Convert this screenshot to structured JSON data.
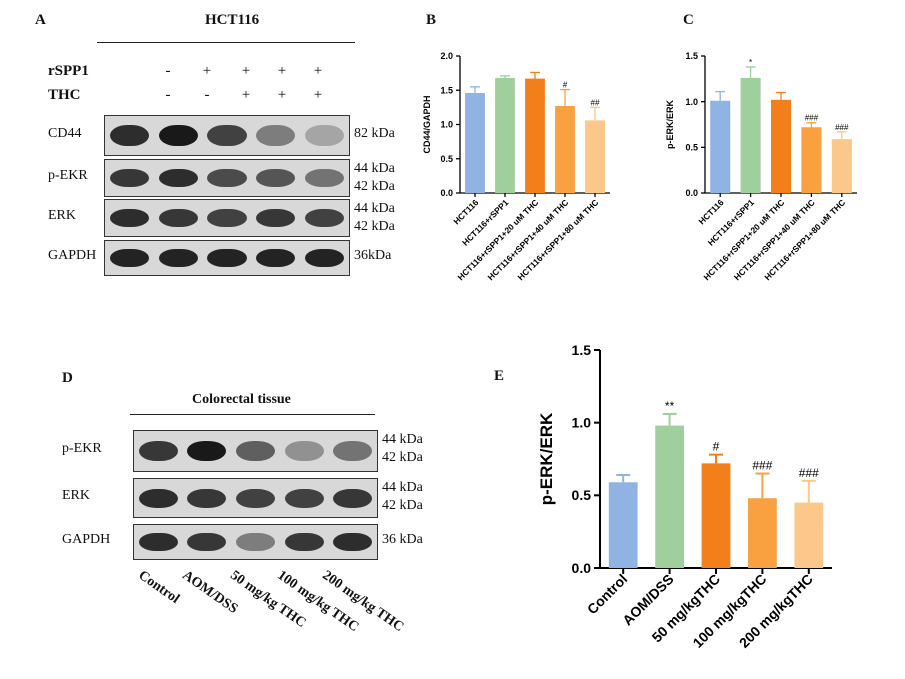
{
  "panels": {
    "A": {
      "letter": "A",
      "cell_line": "HCT116",
      "rows": [
        {
          "label": "rSPP1",
          "signs": [
            "-",
            "+",
            "+",
            "+",
            "+"
          ]
        },
        {
          "label": "THC",
          "signs": [
            "-",
            "-",
            "+",
            "+",
            "+"
          ]
        }
      ],
      "blots": [
        {
          "label": "CD44",
          "kda": [
            "82 kDa"
          ],
          "intensity": [
            0.85,
            0.95,
            0.75,
            0.45,
            0.25
          ]
        },
        {
          "label": "p-EKR",
          "kda": [
            "44 kDa",
            "42 kDa"
          ],
          "intensity": [
            0.8,
            0.85,
            0.7,
            0.65,
            0.5
          ]
        },
        {
          "label": "ERK",
          "kda": [
            "44 kDa",
            "42 kDa"
          ],
          "intensity": [
            0.85,
            0.8,
            0.75,
            0.8,
            0.75
          ]
        },
        {
          "label": "GAPDH",
          "kda": [
            "36kDa"
          ],
          "intensity": [
            0.9,
            0.9,
            0.9,
            0.9,
            0.9
          ]
        }
      ]
    },
    "B": {
      "letter": "B"
    },
    "C": {
      "letter": "C"
    },
    "D": {
      "letter": "D",
      "tissue": "Colorectal tissue",
      "blots": [
        {
          "label": "p-EKR",
          "kda": [
            "44 kDa",
            "42 kDa"
          ],
          "intensity": [
            0.8,
            0.95,
            0.6,
            0.35,
            0.5
          ]
        },
        {
          "label": "ERK",
          "kda": [
            "44 kDa",
            "42 kDa"
          ],
          "intensity": [
            0.85,
            0.8,
            0.75,
            0.75,
            0.8
          ]
        },
        {
          "label": "GAPDH",
          "kda": [
            "36 kDa"
          ],
          "intensity": [
            0.85,
            0.8,
            0.45,
            0.8,
            0.85
          ]
        }
      ],
      "groups": [
        "Control",
        "AOM/DSS",
        "50 mg/kg THC",
        "100 mg/kg THC",
        "200 mg/kg THC"
      ]
    },
    "E": {
      "letter": "E"
    }
  },
  "chart_data": [
    {
      "panel": "B",
      "type": "bar",
      "ylabel": "CD44/GAPDH",
      "ylim": [
        0,
        2.0
      ],
      "yticks": [
        "0.0",
        "0.5",
        "1.0",
        "1.5",
        "2.0"
      ],
      "categories": [
        "HCT116",
        "HCT116+rSPP1",
        "HCT116+rSPP1+20 uM THC",
        "HCT116+rSPP1+40 uM THC",
        "HCT116+rSPP1+80 uM THC"
      ],
      "values": [
        1.46,
        1.68,
        1.67,
        1.27,
        1.06
      ],
      "errors": [
        0.09,
        0.03,
        0.09,
        0.24,
        0.19
      ],
      "annotations": [
        "",
        "",
        "",
        "#",
        "##"
      ],
      "colors": [
        "#8fb4e3",
        "#9fcf9c",
        "#f37f1a",
        "#f9a040",
        "#fbc78b"
      ]
    },
    {
      "panel": "C",
      "type": "bar",
      "ylabel": "p-ERK/ERK",
      "ylim": [
        0,
        1.5
      ],
      "yticks": [
        "0.0",
        "0.5",
        "1.0",
        "1.5"
      ],
      "categories": [
        "HCT116",
        "HCT116+rSPP1",
        "HCT116+rSPP1+20 uM THC",
        "HCT116+rSPP1+40 uM THC",
        "HCT116+rSPP1+80 uM THC"
      ],
      "values": [
        1.01,
        1.26,
        1.02,
        0.72,
        0.59
      ],
      "errors": [
        0.1,
        0.12,
        0.08,
        0.05,
        0.08
      ],
      "annotations": [
        "",
        "*",
        "",
        "###",
        "###"
      ],
      "colors": [
        "#8fb4e3",
        "#9fcf9c",
        "#f37f1a",
        "#f9a040",
        "#fbc78b"
      ]
    },
    {
      "panel": "E",
      "type": "bar",
      "ylabel": "p-ERK/ERK",
      "ylim": [
        0,
        1.5
      ],
      "yticks": [
        "0.0",
        "0.5",
        "1.0",
        "1.5"
      ],
      "categories": [
        "Control",
        "AOM/DSS",
        "50 mg/kgTHC",
        "100 mg/kgTHC",
        "200 mg/kgTHC"
      ],
      "values": [
        0.59,
        0.98,
        0.72,
        0.48,
        0.45
      ],
      "errors": [
        0.05,
        0.08,
        0.06,
        0.17,
        0.15
      ],
      "annotations": [
        "",
        "**",
        "#",
        "###",
        "###"
      ],
      "colors": [
        "#8fb4e3",
        "#9fcf9c",
        "#f37f1a",
        "#f9a040",
        "#fbc78b"
      ]
    }
  ]
}
